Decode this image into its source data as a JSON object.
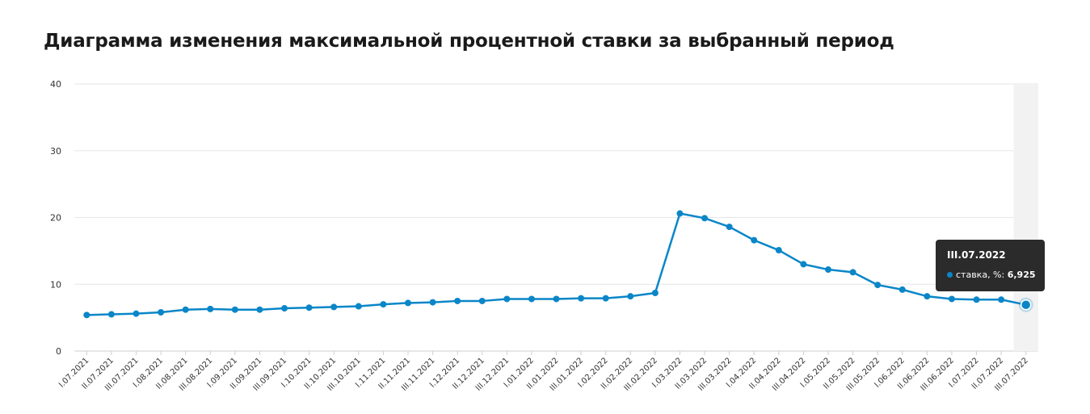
{
  "title": "Диаграмма изменения максимальной процентной ставки за выбранный период",
  "chart_data": {
    "type": "line",
    "title": "Диаграмма изменения максимальной процентной ставки за выбранный период",
    "xlabel": "",
    "ylabel": "",
    "ylim": [
      0,
      40
    ],
    "yticks": [
      0,
      10,
      20,
      30,
      40
    ],
    "grid": true,
    "categories": [
      "I.07.2021",
      "II.07.2021",
      "III.07.2021",
      "I.08.2021",
      "II.08.2021",
      "III.08.2021",
      "I.09.2021",
      "II.09.2021",
      "III.09.2021",
      "I.10.2021",
      "II.10.2021",
      "III.10.2021",
      "I.11.2021",
      "II.11.2021",
      "III.11.2021",
      "I.12.2021",
      "II.12.2021",
      "III.12.2021",
      "I.01.2022",
      "II.01.2022",
      "III.01.2022",
      "I.02.2022",
      "II.02.2022",
      "III.02.2022",
      "I.03.2022",
      "II.03.2022",
      "III.03.2022",
      "I.04.2022",
      "II.04.2022",
      "III.04.2022",
      "I.05.2022",
      "II.05.2022",
      "III.05.2022",
      "I.06.2022",
      "II.06.2022",
      "III.06.2022",
      "I.07.2022",
      "II.07.2022",
      "III.07.2022"
    ],
    "series": [
      {
        "name": "ставка, %",
        "color": "#0a86c8",
        "values": [
          5.4,
          5.5,
          5.6,
          5.8,
          6.2,
          6.3,
          6.2,
          6.2,
          6.4,
          6.5,
          6.6,
          6.7,
          7.0,
          7.2,
          7.3,
          7.5,
          7.5,
          7.8,
          7.8,
          7.8,
          7.9,
          7.9,
          8.2,
          8.7,
          20.6,
          19.9,
          18.6,
          16.6,
          15.1,
          13.0,
          12.2,
          11.8,
          9.9,
          9.2,
          8.2,
          7.8,
          7.7,
          7.7,
          6.925
        ]
      }
    ],
    "highlight": {
      "category": "III.07.2022",
      "series_label": "ставка, %:",
      "value_text": "6,925"
    }
  }
}
